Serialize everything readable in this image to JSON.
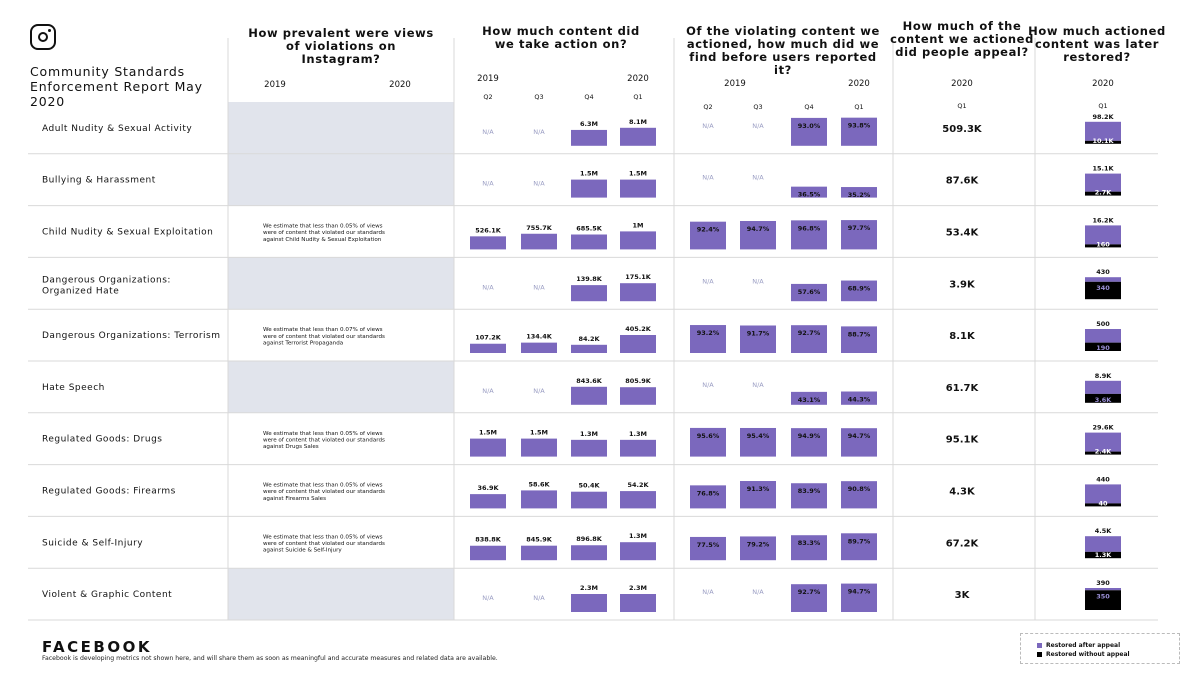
{
  "report": {
    "title_line1": "Community Standards",
    "title_line2": "Enforcement Report May 2020",
    "brand": "FACEBOOK",
    "footnote": "Facebook is developing metrics not shown here, and will share them as soon as meaningful and accurate measures and related data are available."
  },
  "legend": {
    "restored_after_appeal": "Restored after appeal",
    "restored_without_appeal": "Restored without appeal"
  },
  "colors": {
    "bar": "#7b68bd",
    "bar_dark": "#000000",
    "shade": "#e1e4ec",
    "grid": "#d9d9d9"
  },
  "headers": {
    "prevalence": "How prevalent were views of violations on Instagram?",
    "actioned": "How much content did we take action on?",
    "proactive": "Of the violating content we actioned, how much did we find before users reported it?",
    "appealed": "How much of the content we actioned did people appeal?",
    "restored": "How much actioned content was later restored?"
  },
  "year_labels": {
    "y2019": "2019",
    "y2020": "2020"
  },
  "quarters": [
    "Q2",
    "Q3",
    "Q4",
    "Q1"
  ],
  "icons": [
    "instagram-icon"
  ],
  "chart_data": {
    "type": "table",
    "title": "Community Standards Enforcement Report May 2020",
    "categories": [
      "Adult Nudity & Sexual Activity",
      "Bullying & Harassment",
      "Child Nudity & Sexual Exploitation",
      "Dangerous Organizations: Organized Hate",
      "Dangerous Organizations: Terrorism",
      "Hate Speech",
      "Regulated Goods: Drugs",
      "Regulated Goods: Firearms",
      "Suicide & Self-Injury",
      "Violent & Graphic Content"
    ],
    "rows": [
      {
        "label": "Adult Nudity & Sexual Activity",
        "prevalence": "",
        "actioned_labels": [
          "N/A",
          "N/A",
          "6.3M",
          "8.1M"
        ],
        "actioned_values": [
          null,
          null,
          6300000,
          8100000
        ],
        "proactive_labels": [
          "N/A",
          "N/A",
          "93.0%",
          "93.8%"
        ],
        "proactive_values": [
          null,
          null,
          93.0,
          93.8
        ],
        "appealed": "509.3K",
        "restored_total_label": "98.2K",
        "restored_total": 98200,
        "restored_without_label": "10.1K",
        "restored_without": 10100
      },
      {
        "label": "Bullying & Harassment",
        "prevalence": "",
        "actioned_labels": [
          "N/A",
          "N/A",
          "1.5M",
          "1.5M"
        ],
        "actioned_values": [
          null,
          null,
          1500000,
          1500000
        ],
        "proactive_labels": [
          "N/A",
          "N/A",
          "36.5%",
          "35.2%"
        ],
        "proactive_values": [
          null,
          null,
          36.5,
          35.2
        ],
        "appealed": "87.6K",
        "restored_total_label": "15.1K",
        "restored_total": 15100,
        "restored_without_label": "2.7K",
        "restored_without": 2700
      },
      {
        "label": "Child Nudity & Sexual Exploitation",
        "prevalence": "We estimate that less than 0.05% of views were of content that violated our standards against Child Nudity & Sexual Exploitation",
        "actioned_labels": [
          "526.1K",
          "755.7K",
          "685.5K",
          "1M"
        ],
        "actioned_values": [
          526100,
          755700,
          685500,
          1000000
        ],
        "proactive_labels": [
          "92.4%",
          "94.7%",
          "96.8%",
          "97.7%"
        ],
        "proactive_values": [
          92.4,
          94.7,
          96.8,
          97.7
        ],
        "appealed": "53.4K",
        "restored_total_label": "16.2K",
        "restored_total": 16200,
        "restored_without_label": "160",
        "restored_without": 160
      },
      {
        "label": "Dangerous Organizations: Organized Hate",
        "prevalence": "",
        "actioned_labels": [
          "N/A",
          "N/A",
          "139.8K",
          "175.1K"
        ],
        "actioned_values": [
          null,
          null,
          139800,
          175100
        ],
        "proactive_labels": [
          "N/A",
          "N/A",
          "57.6%",
          "68.9%"
        ],
        "proactive_values": [
          null,
          null,
          57.6,
          68.9
        ],
        "appealed": "3.9K",
        "restored_total_label": "430",
        "restored_total": 430,
        "restored_without_label": "340",
        "restored_without": 340
      },
      {
        "label": "Dangerous Organizations: Terrorism",
        "prevalence": "We estimate that less than 0.07% of views were of content that violated our standards against Terrorist Propaganda",
        "actioned_labels": [
          "107.2K",
          "134.4K",
          "84.2K",
          "405.2K"
        ],
        "actioned_values": [
          107200,
          134400,
          84200,
          405200
        ],
        "proactive_labels": [
          "93.2%",
          "91.7%",
          "92.7%",
          "88.7%"
        ],
        "proactive_values": [
          93.2,
          91.7,
          92.7,
          88.7
        ],
        "appealed": "8.1K",
        "restored_total_label": "500",
        "restored_total": 500,
        "restored_without_label": "190",
        "restored_without": 190
      },
      {
        "label": "Hate Speech",
        "prevalence": "",
        "actioned_labels": [
          "N/A",
          "N/A",
          "843.6K",
          "805.9K"
        ],
        "actioned_values": [
          null,
          null,
          843600,
          805900
        ],
        "proactive_labels": [
          "N/A",
          "N/A",
          "43.1%",
          "44.3%"
        ],
        "proactive_values": [
          null,
          null,
          43.1,
          44.3
        ],
        "appealed": "61.7K",
        "restored_total_label": "8.9K",
        "restored_total": 8900,
        "restored_without_label": "3.6K",
        "restored_without": 3600
      },
      {
        "label": "Regulated Goods: Drugs",
        "prevalence": "We estimate that less than 0.05% of views were of content that violated our standards against Drugs Sales",
        "actioned_labels": [
          "1.5M",
          "1.5M",
          "1.3M",
          "1.3M"
        ],
        "actioned_values": [
          1500000,
          1500000,
          1300000,
          1300000
        ],
        "proactive_labels": [
          "95.6%",
          "95.4%",
          "94.9%",
          "94.7%"
        ],
        "proactive_values": [
          95.6,
          95.4,
          94.9,
          94.7
        ],
        "appealed": "95.1K",
        "restored_total_label": "29.6K",
        "restored_total": 29600,
        "restored_without_label": "2.4K",
        "restored_without": 2400
      },
      {
        "label": "Regulated Goods: Firearms",
        "prevalence": "We estimate that less than 0.05% of views were of content that violated our standards against Firearms Sales",
        "actioned_labels": [
          "36.9K",
          "58.6K",
          "50.4K",
          "54.2K"
        ],
        "actioned_values": [
          36900,
          58600,
          50400,
          54200
        ],
        "proactive_labels": [
          "76.8%",
          "91.3%",
          "83.9%",
          "90.8%"
        ],
        "proactive_values": [
          76.8,
          91.3,
          83.9,
          90.8
        ],
        "appealed": "4.3K",
        "restored_total_label": "440",
        "restored_total": 440,
        "restored_without_label": "40",
        "restored_without": 40
      },
      {
        "label": "Suicide & Self-Injury",
        "prevalence": "We estimate that less than 0.05% of views were of content that violated our standards against Suicide & Self-Injury",
        "actioned_labels": [
          "838.8K",
          "845.9K",
          "896.8K",
          "1.3M"
        ],
        "actioned_values": [
          838800,
          845900,
          896800,
          1300000
        ],
        "proactive_labels": [
          "77.5%",
          "79.2%",
          "83.3%",
          "89.7%"
        ],
        "proactive_values": [
          77.5,
          79.2,
          83.3,
          89.7
        ],
        "appealed": "67.2K",
        "restored_total_label": "4.5K",
        "restored_total": 4500,
        "restored_without_label": "1.3K",
        "restored_without": 1300
      },
      {
        "label": "Violent & Graphic Content",
        "prevalence": "",
        "actioned_labels": [
          "N/A",
          "N/A",
          "2.3M",
          "2.3M"
        ],
        "actioned_values": [
          null,
          null,
          2300000,
          2300000
        ],
        "proactive_labels": [
          "N/A",
          "N/A",
          "92.7%",
          "94.7%"
        ],
        "proactive_values": [
          null,
          null,
          92.7,
          94.7
        ],
        "appealed": "3K",
        "restored_total_label": "390",
        "restored_total": 390,
        "restored_without_label": "350",
        "restored_without": 350
      }
    ]
  }
}
